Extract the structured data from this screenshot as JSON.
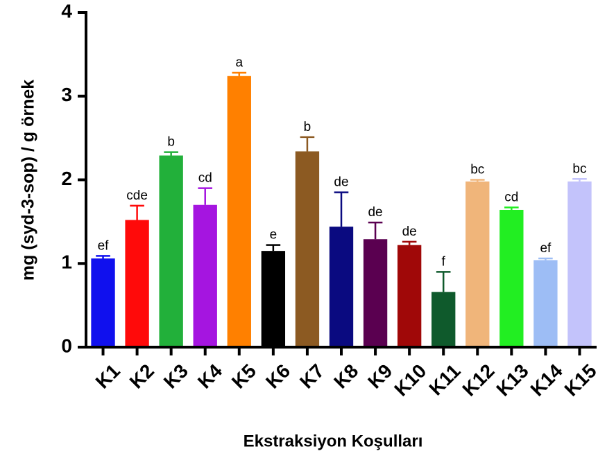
{
  "chart_data": {
    "type": "bar",
    "ylabel": "mg (syd-3-sop) / g örnek",
    "xlabel": "Ekstraksiyon Koşulları",
    "categories": [
      "K1",
      "K2",
      "K3",
      "K4",
      "K5",
      "K6",
      "K7",
      "K8",
      "K9",
      "K10",
      "K11",
      "K12",
      "K13",
      "K14",
      "K15"
    ],
    "values": [
      1.06,
      1.52,
      2.29,
      1.7,
      3.24,
      1.15,
      2.34,
      1.44,
      1.29,
      1.22,
      0.66,
      1.98,
      1.64,
      1.04,
      1.98
    ],
    "errors": [
      0.03,
      0.17,
      0.04,
      0.2,
      0.04,
      0.07,
      0.17,
      0.41,
      0.2,
      0.04,
      0.24,
      0.02,
      0.03,
      0.02,
      0.03
    ],
    "annotations": [
      "ef",
      "cde",
      "b",
      "cd",
      "a",
      "e",
      "b",
      "de",
      "de",
      "de",
      "f",
      "bc",
      "cd",
      "ef",
      "bc"
    ],
    "colors": [
      "#1010ee",
      "#ff0a0a",
      "#22b03a",
      "#a515e0",
      "#ff8000",
      "#000000",
      "#8c5a22",
      "#0a0a80",
      "#5a0050",
      "#a00808",
      "#0f5a2c",
      "#f0b57a",
      "#22ee22",
      "#9dbdf5",
      "#c3c3fb"
    ],
    "ylim": [
      0,
      4
    ],
    "yticks": [
      0,
      1,
      2,
      3,
      4
    ]
  }
}
